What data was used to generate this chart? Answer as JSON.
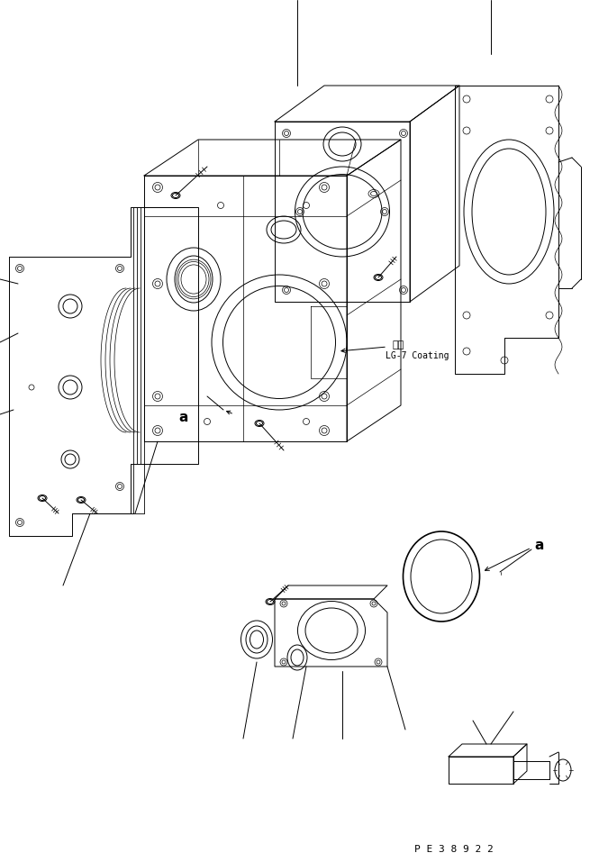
{
  "background_color": "#ffffff",
  "line_color": "#000000",
  "fig_width": 6.75,
  "fig_height": 9.57,
  "dpi": 100,
  "annotation_coating_jp": "塗布",
  "annotation_coating_en": "LG-7 Coating",
  "annotation_a1": "a",
  "annotation_a2": "a",
  "part_number": "P E 3 8 9 2 2"
}
